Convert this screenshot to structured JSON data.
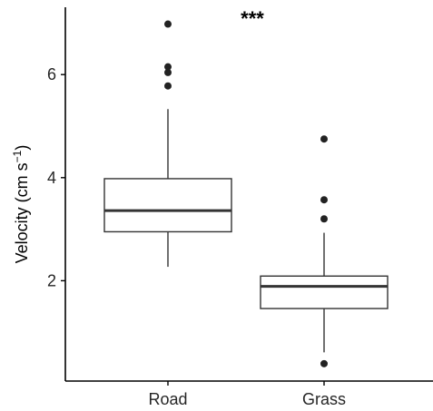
{
  "chart_data": {
    "type": "box",
    "title": "",
    "xlabel": "",
    "ylabel": "Velocity (cm s",
    "ylabel_superscript": "−1",
    "ylabel_close": ")",
    "ylim": [
      0.0,
      7.25
    ],
    "yticks": [
      2,
      4,
      6
    ],
    "ytick_labels": [
      "2",
      "4",
      "6"
    ],
    "grid": false,
    "categories": [
      "Road",
      "Grass"
    ],
    "boxes": [
      {
        "category": "Road",
        "whisker_low": 2.27,
        "q1": 2.95,
        "median": 3.36,
        "q3": 3.98,
        "whisker_high": 5.33,
        "outliers": [
          5.78,
          6.04,
          6.15,
          6.98
        ]
      },
      {
        "category": "Grass",
        "whisker_low": 0.61,
        "q1": 1.46,
        "median": 1.89,
        "q3": 2.09,
        "whisker_high": 2.93,
        "outliers": [
          0.39,
          3.2,
          3.57,
          4.75
        ]
      }
    ],
    "annotation": "***",
    "colors": {
      "box_fill": "#ffffff",
      "box_stroke": "#333333",
      "median": "#333333",
      "point": "#222222",
      "axis": "#000000"
    }
  }
}
